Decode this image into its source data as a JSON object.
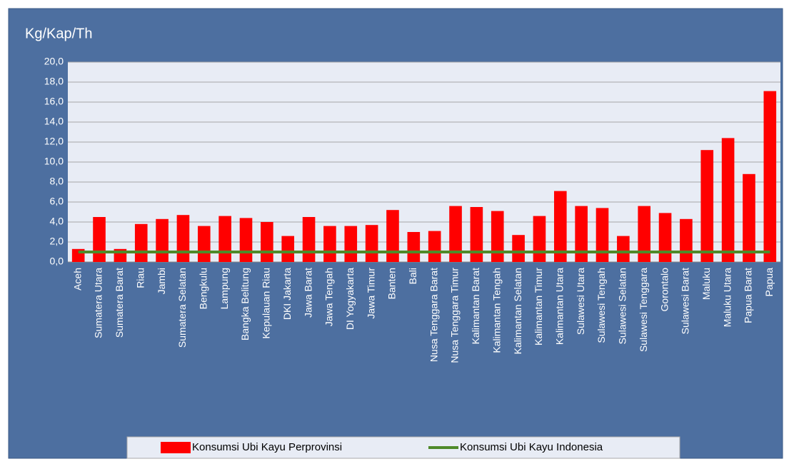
{
  "chart_data": {
    "type": "bar",
    "y_label": "Kg/Kap/Th",
    "categories": [
      "Aceh",
      "Sumatera Utara",
      "Sumatera Barat",
      "Riau",
      "Jambi",
      "Sumatera Selatan",
      "Bengkulu",
      "Lampung",
      "Bangka Belitung",
      "Kepulauan Riau",
      "DKI Jakarta",
      "Jawa Barat",
      "Jawa Tengah",
      "DI Yogyakarta",
      "Jawa Timur",
      "Banten",
      "Bali",
      "Nusa Tenggara Barat",
      "Nusa Tenggara Timur",
      "Kalimantan Barat",
      "Kalimantan Tengah",
      "Kalimantan Selatan",
      "Kalimantan Timur",
      "Kalimantan Utara",
      "Sulawesi Utara",
      "Sulawesi Tengah",
      "Sulawesi Selatan",
      "Sulawesi Tenggara",
      "Gorontalo",
      "Sulawesi Barat",
      "Maluku",
      "Maluku Utara",
      "Papua Barat",
      "Papua"
    ],
    "series": [
      {
        "name": "Konsumsi Ubi Kayu Perprovinsi",
        "type": "bar",
        "color": "#ff0000",
        "values": [
          1.3,
          4.5,
          1.3,
          3.8,
          4.3,
          4.7,
          3.6,
          4.6,
          4.4,
          4.0,
          2.6,
          4.5,
          3.6,
          3.6,
          3.7,
          5.2,
          3.0,
          3.1,
          5.6,
          5.5,
          5.1,
          2.7,
          4.6,
          7.1,
          5.6,
          5.4,
          2.6,
          5.6,
          4.9,
          4.3,
          11.2,
          12.4,
          8.8,
          17.1
        ]
      },
      {
        "name": "Konsumsi Ubi Kayu Indonesia",
        "type": "line",
        "color": "#4f8a2a",
        "values": [
          1.0,
          1.0,
          1.0,
          1.0,
          1.0,
          1.0,
          1.0,
          1.0,
          1.0,
          1.0,
          1.0,
          1.0,
          1.0,
          1.0,
          1.0,
          1.0,
          1.0,
          1.0,
          1.0,
          1.0,
          1.0,
          1.0,
          1.0,
          1.0,
          1.0,
          1.0,
          1.0,
          1.0,
          1.0,
          1.0,
          1.0,
          1.0,
          1.0,
          1.0
        ]
      }
    ],
    "ylim": [
      0,
      20
    ],
    "yticks": [
      {
        "value": 0,
        "label": "0,0"
      },
      {
        "value": 2,
        "label": "2,0"
      },
      {
        "value": 4,
        "label": "4,0"
      },
      {
        "value": 6,
        "label": "6,0"
      },
      {
        "value": 8,
        "label": "8,0"
      },
      {
        "value": 10,
        "label": "10,0"
      },
      {
        "value": 12,
        "label": "12,0"
      },
      {
        "value": 14,
        "label": "14,0"
      },
      {
        "value": 16,
        "label": "16,0"
      },
      {
        "value": 18,
        "label": "18,0"
      },
      {
        "value": 20,
        "label": "20,0"
      }
    ],
    "grid": true,
    "legend": "bottom"
  }
}
